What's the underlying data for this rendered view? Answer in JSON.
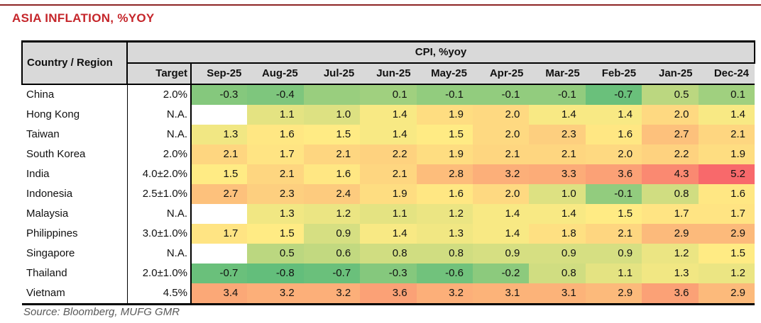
{
  "title": "ASIA INFLATION, %YOY",
  "source": "Source: Bloomberg, MUFG GMR",
  "colors": {
    "title_red": "#c5262b",
    "top_rule": "#8d2424",
    "header_bg": "#d9d9d9",
    "source_grey": "#595959",
    "scale_min_color": "#63BE7B",
    "scale_mid_color": "#FFEB84",
    "scale_max_color": "#F8696B",
    "blank_cell": "#ffffff"
  },
  "chart_data": {
    "type": "heatmap",
    "title": "ASIA INFLATION, %YOY",
    "corner_header": "Country / Region",
    "group_header": "CPI, %yoy",
    "target_header": "Target",
    "columns": [
      "Sep-25",
      "Aug-25",
      "Jul-25",
      "Jun-25",
      "May-25",
      "Apr-25",
      "Mar-25",
      "Feb-25",
      "Jan-25",
      "Dec-24"
    ],
    "color_scale": {
      "min": -0.8,
      "mid": 1.5,
      "max": 5.2
    },
    "rows": [
      {
        "country": "China",
        "target": "2.0%",
        "values": [
          -0.3,
          -0.4,
          null,
          0.1,
          -0.1,
          -0.1,
          -0.1,
          -0.7,
          0.5,
          0.1
        ],
        "blank_fill": {
          "2": 0.0
        }
      },
      {
        "country": "Hong Kong",
        "target": "N.A.",
        "values": [
          null,
          1.1,
          1.0,
          1.4,
          1.9,
          2.0,
          1.4,
          1.4,
          2.0,
          1.4
        ]
      },
      {
        "country": "Taiwan",
        "target": "N.A.",
        "values": [
          1.3,
          1.6,
          1.5,
          1.4,
          1.5,
          2.0,
          2.3,
          1.6,
          2.7,
          2.1
        ]
      },
      {
        "country": "South Korea",
        "target": "2.0%",
        "values": [
          2.1,
          1.7,
          2.1,
          2.2,
          1.9,
          2.1,
          2.1,
          2.0,
          2.2,
          1.9
        ]
      },
      {
        "country": "India",
        "target": "4.0±2.0%",
        "values": [
          1.5,
          2.1,
          1.6,
          2.1,
          2.8,
          3.2,
          3.3,
          3.6,
          4.3,
          5.2
        ]
      },
      {
        "country": "Indonesia",
        "target": "2.5±1.0%",
        "values": [
          2.7,
          2.3,
          2.4,
          1.9,
          1.6,
          2.0,
          1.0,
          -0.1,
          0.8,
          1.6
        ]
      },
      {
        "country": "Malaysia",
        "target": "N.A.",
        "values": [
          null,
          1.3,
          1.2,
          1.1,
          1.2,
          1.4,
          1.4,
          1.5,
          1.7,
          1.7
        ]
      },
      {
        "country": "Philippines",
        "target": "3.0±1.0%",
        "values": [
          1.7,
          1.5,
          0.9,
          1.4,
          1.3,
          1.4,
          1.8,
          2.1,
          2.9,
          2.9
        ]
      },
      {
        "country": "Singapore",
        "target": "N.A.",
        "values": [
          null,
          0.5,
          0.6,
          0.8,
          0.8,
          0.9,
          0.9,
          0.9,
          1.2,
          1.5
        ]
      },
      {
        "country": "Thailand",
        "target": "2.0±1.0%",
        "values": [
          -0.7,
          -0.8,
          -0.7,
          -0.3,
          -0.6,
          -0.2,
          0.8,
          1.1,
          1.3,
          1.2
        ]
      },
      {
        "country": "Vietnam",
        "target": "4.5%",
        "values": [
          3.4,
          3.2,
          3.2,
          3.6,
          3.2,
          3.1,
          3.1,
          2.9,
          3.6,
          2.9
        ]
      }
    ]
  }
}
